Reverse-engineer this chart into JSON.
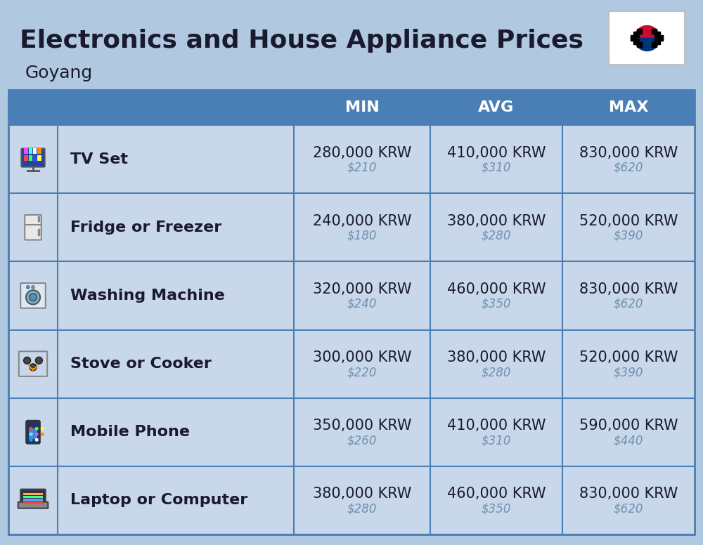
{
  "title": "Electronics and House Appliance Prices",
  "subtitle": "Goyang",
  "background_color": "#b0c8e0",
  "header_color": "#4a7fb5",
  "header_text_color": "#ffffff",
  "row_bg_color": "#c8d8ea",
  "divider_color": "#4a7fb5",
  "col_divider_color": "#7aaad0",
  "columns": [
    "MIN",
    "AVG",
    "MAX"
  ],
  "items": [
    {
      "name": "TV Set",
      "min_krw": "280,000 KRW",
      "min_usd": "$210",
      "avg_krw": "410,000 KRW",
      "avg_usd": "$310",
      "max_krw": "830,000 KRW",
      "max_usd": "$620"
    },
    {
      "name": "Fridge or Freezer",
      "min_krw": "240,000 KRW",
      "min_usd": "$180",
      "avg_krw": "380,000 KRW",
      "avg_usd": "$280",
      "max_krw": "520,000 KRW",
      "max_usd": "$390"
    },
    {
      "name": "Washing Machine",
      "min_krw": "320,000 KRW",
      "min_usd": "$240",
      "avg_krw": "460,000 KRW",
      "avg_usd": "$350",
      "max_krw": "830,000 KRW",
      "max_usd": "$620"
    },
    {
      "name": "Stove or Cooker",
      "min_krw": "300,000 KRW",
      "min_usd": "$220",
      "avg_krw": "380,000 KRW",
      "avg_usd": "$280",
      "max_krw": "520,000 KRW",
      "max_usd": "$390"
    },
    {
      "name": "Mobile Phone",
      "min_krw": "350,000 KRW",
      "min_usd": "$260",
      "avg_krw": "410,000 KRW",
      "avg_usd": "$310",
      "max_krw": "590,000 KRW",
      "max_usd": "$440"
    },
    {
      "name": "Laptop or Computer",
      "min_krw": "380,000 KRW",
      "min_usd": "$280",
      "avg_krw": "460,000 KRW",
      "avg_usd": "$350",
      "max_krw": "830,000 KRW",
      "max_usd": "$620"
    }
  ],
  "main_text_color": "#1a1a2e",
  "usd_text_color": "#7090b0",
  "krw_fontsize": 15,
  "usd_fontsize": 12,
  "name_fontsize": 16,
  "header_fontsize": 16,
  "title_fontsize": 26,
  "subtitle_fontsize": 18
}
